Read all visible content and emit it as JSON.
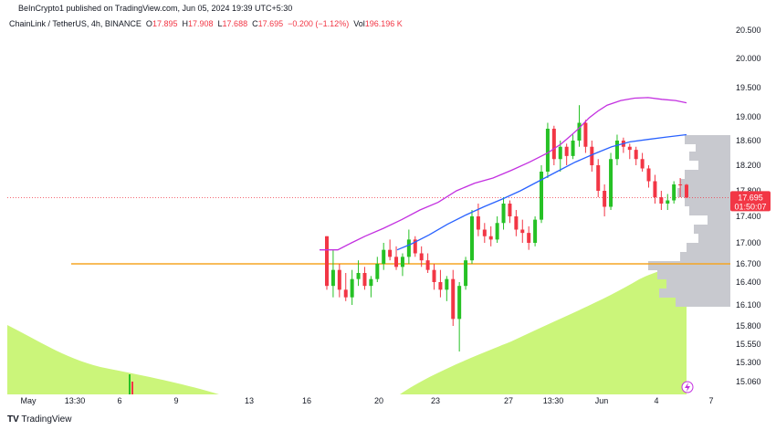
{
  "header": {
    "published": "BeInCrypto1 published on TradingView.com, Jun 05, 2024 19:39 UTC+5:30",
    "symbol": "ChainLink / TetherUS, 4h, BINANCE",
    "o_label": "O",
    "o_value": "17.895",
    "h_label": "H",
    "h_value": "17.908",
    "l_label": "L",
    "l_value": "17.688",
    "c_label": "C",
    "c_value": "17.695",
    "change": "−0.200 (−1.12%)",
    "vol_label": "Vol",
    "vol_value": "196.196 K"
  },
  "footer": {
    "logo": "TV",
    "brand": "TradingView"
  },
  "colors": {
    "up": "#26c125",
    "down": "#f23645",
    "ma_fast": "#c330e0",
    "ma_slow": "#2962ff",
    "volume_area": "#cbf57a",
    "level_line": "#f5a623",
    "profile": "#c8c9cf"
  },
  "chart_data": {
    "type": "candlestick",
    "symbol": "ChainLink / TetherUS",
    "interval": "4h",
    "exchange": "BINANCE",
    "y_ticks": [
      "20.500",
      "20.000",
      "19.500",
      "19.000",
      "18.600",
      "18.200",
      "17.800",
      "17.400",
      "17.000",
      "16.700",
      "16.400",
      "16.100",
      "15.800",
      "15.550",
      "15.300",
      "15.060"
    ],
    "x_ticks": [
      "May",
      "13:30",
      "6",
      "9",
      "13",
      "16",
      "20",
      "23",
      "27",
      "13:30",
      "Jun",
      "4",
      "7"
    ],
    "last_price": "17.695",
    "countdown": "01:50:07",
    "horizontal_level": 16.7,
    "candles": [
      [
        17.1,
        17.1,
        16.3,
        16.35
      ],
      [
        16.35,
        16.9,
        16.2,
        16.6
      ],
      [
        16.6,
        16.7,
        16.2,
        16.3
      ],
      [
        16.3,
        16.55,
        16.15,
        16.2
      ],
      [
        16.2,
        16.6,
        16.1,
        16.45
      ],
      [
        16.45,
        16.75,
        16.35,
        16.55
      ],
      [
        16.55,
        16.65,
        16.3,
        16.35
      ],
      [
        16.35,
        16.5,
        16.2,
        16.45
      ],
      [
        16.45,
        16.8,
        16.4,
        16.7
      ],
      [
        16.7,
        17.0,
        16.6,
        16.9
      ],
      [
        16.9,
        17.05,
        16.75,
        16.8
      ],
      [
        16.8,
        16.95,
        16.6,
        16.65
      ],
      [
        16.65,
        16.85,
        16.5,
        16.8
      ],
      [
        16.8,
        17.2,
        16.7,
        17.05
      ],
      [
        17.05,
        17.1,
        16.8,
        16.85
      ],
      [
        16.85,
        16.95,
        16.65,
        16.75
      ],
      [
        16.75,
        16.85,
        16.55,
        16.6
      ],
      [
        16.6,
        16.7,
        16.3,
        16.4
      ],
      [
        16.4,
        16.6,
        16.2,
        16.3
      ],
      [
        16.3,
        16.5,
        16.15,
        16.45
      ],
      [
        16.45,
        16.6,
        15.8,
        15.9
      ],
      [
        15.9,
        16.4,
        15.45,
        16.35
      ],
      [
        16.35,
        16.8,
        16.3,
        16.75
      ],
      [
        16.75,
        17.5,
        16.7,
        17.4
      ],
      [
        17.4,
        17.6,
        17.1,
        17.2
      ],
      [
        17.2,
        17.3,
        17.0,
        17.1
      ],
      [
        17.1,
        17.25,
        16.95,
        17.05
      ],
      [
        17.05,
        17.4,
        17.0,
        17.3
      ],
      [
        17.3,
        17.7,
        17.2,
        17.6
      ],
      [
        17.6,
        17.65,
        17.3,
        17.4
      ],
      [
        17.4,
        17.5,
        17.1,
        17.2
      ],
      [
        17.2,
        17.35,
        17.0,
        17.15
      ],
      [
        17.15,
        17.25,
        16.9,
        17.0
      ],
      [
        17.0,
        17.4,
        16.95,
        17.35
      ],
      [
        17.35,
        18.2,
        17.3,
        18.1
      ],
      [
        18.1,
        18.9,
        18.0,
        18.8
      ],
      [
        18.8,
        18.85,
        18.2,
        18.3
      ],
      [
        18.3,
        18.6,
        18.1,
        18.5
      ],
      [
        18.5,
        18.55,
        18.2,
        18.35
      ],
      [
        18.35,
        18.7,
        18.3,
        18.6
      ],
      [
        18.6,
        19.2,
        18.5,
        18.9
      ],
      [
        18.9,
        18.95,
        18.4,
        18.5
      ],
      [
        18.5,
        18.6,
        18.1,
        18.2
      ],
      [
        18.2,
        18.3,
        17.7,
        17.8
      ],
      [
        17.8,
        17.9,
        17.4,
        17.55
      ],
      [
        17.55,
        18.4,
        17.5,
        18.3
      ],
      [
        18.3,
        18.7,
        18.2,
        18.6
      ],
      [
        18.6,
        18.65,
        18.4,
        18.5
      ],
      [
        18.5,
        18.55,
        18.3,
        18.45
      ],
      [
        18.45,
        18.5,
        18.2,
        18.3
      ],
      [
        18.3,
        18.4,
        18.1,
        18.15
      ],
      [
        18.15,
        18.2,
        17.85,
        17.95
      ],
      [
        17.95,
        18.05,
        17.6,
        17.7
      ],
      [
        17.7,
        17.8,
        17.5,
        17.6
      ],
      [
        17.6,
        17.75,
        17.5,
        17.65
      ],
      [
        17.65,
        17.95,
        17.6,
        17.9
      ],
      [
        17.9,
        18.0,
        17.7,
        17.895
      ],
      [
        17.895,
        17.908,
        17.688,
        17.695
      ]
    ],
    "ma_fast_points": [
      [
        350,
        16.9
      ],
      [
        370,
        16.9
      ],
      [
        385,
        17.0
      ],
      [
        400,
        17.1
      ],
      [
        420,
        17.22
      ],
      [
        440,
        17.35
      ],
      [
        460,
        17.5
      ],
      [
        480,
        17.62
      ],
      [
        500,
        17.8
      ],
      [
        520,
        17.92
      ],
      [
        540,
        18.0
      ],
      [
        560,
        18.12
      ],
      [
        580,
        18.25
      ],
      [
        600,
        18.4
      ],
      [
        615,
        18.55
      ],
      [
        625,
        18.68
      ],
      [
        635,
        18.82
      ],
      [
        645,
        18.98
      ],
      [
        655,
        19.1
      ],
      [
        665,
        19.2
      ],
      [
        680,
        19.28
      ],
      [
        695,
        19.32
      ],
      [
        710,
        19.33
      ],
      [
        725,
        19.3
      ],
      [
        740,
        19.28
      ],
      [
        752,
        19.24
      ]
    ],
    "ma_slow_points": [
      [
        435,
        16.9
      ],
      [
        450,
        16.98
      ],
      [
        470,
        17.12
      ],
      [
        490,
        17.28
      ],
      [
        510,
        17.42
      ],
      [
        530,
        17.55
      ],
      [
        550,
        17.67
      ],
      [
        570,
        17.8
      ],
      [
        590,
        17.95
      ],
      [
        610,
        18.1
      ],
      [
        630,
        18.25
      ],
      [
        650,
        18.38
      ],
      [
        670,
        18.5
      ],
      [
        690,
        18.58
      ],
      [
        710,
        18.62
      ],
      [
        730,
        18.66
      ],
      [
        752,
        18.7
      ]
    ]
  }
}
